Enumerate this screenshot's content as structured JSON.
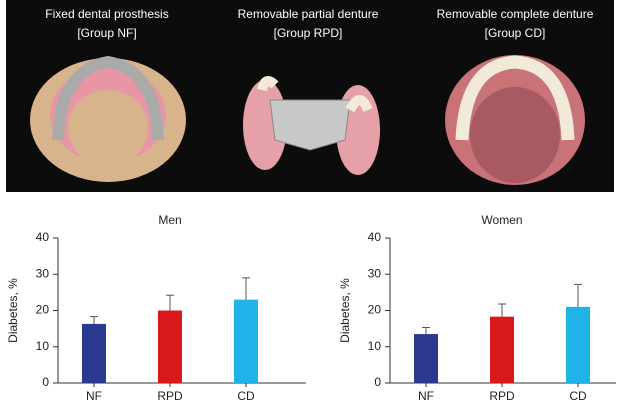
{
  "photos": [
    {
      "caption": "Fixed dental prosthesis",
      "group": "[Group NF]"
    },
    {
      "caption": "Removable partial denture",
      "group": "[Group RPD]"
    },
    {
      "caption": "Removable complete denture",
      "group": "[Group CD]"
    }
  ],
  "chart_data": [
    {
      "type": "bar",
      "title": "Men",
      "ylabel": "Diabetes, %",
      "categories": [
        "NF",
        "RPD",
        "CD"
      ],
      "values": [
        16.3,
        20,
        23
      ],
      "errors": [
        2,
        4.2,
        6
      ],
      "colors": [
        "#2b3990",
        "#d7191c",
        "#1eb4e8"
      ],
      "ylim": [
        0,
        40
      ],
      "yticks": [
        0,
        10,
        20,
        30,
        40
      ]
    },
    {
      "type": "bar",
      "title": "Women",
      "ylabel": "Diabetes, %",
      "categories": [
        "NF",
        "RPD",
        "CD"
      ],
      "values": [
        13.5,
        18.3,
        21
      ],
      "errors": [
        1.8,
        3.5,
        6.2
      ],
      "colors": [
        "#2b3990",
        "#d7191c",
        "#1eb4e8"
      ],
      "ylim": [
        0,
        40
      ],
      "yticks": [
        0,
        10,
        20,
        30,
        40
      ]
    }
  ]
}
